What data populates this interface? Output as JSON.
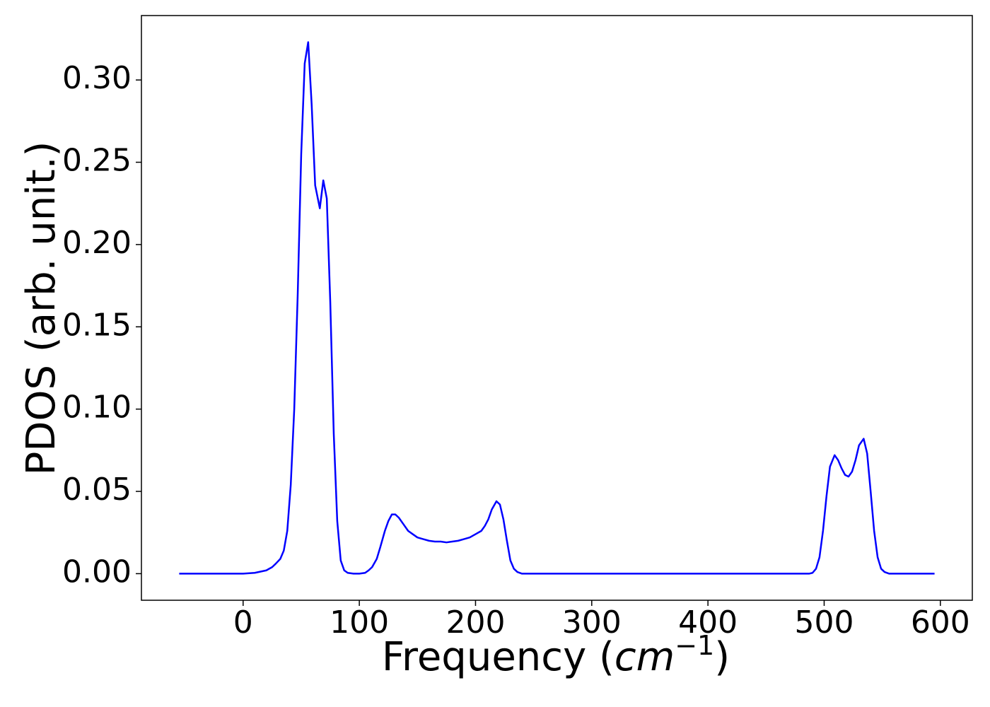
{
  "chart_data": {
    "type": "line",
    "xlabel": {
      "text": "Frequency (",
      "unit": "cm",
      "exponent": "−1",
      "close": ")"
    },
    "ylabel": "PDOS (arb. unit.)",
    "x": [
      -55,
      0,
      10,
      20,
      25,
      28,
      32,
      35,
      38,
      41,
      44,
      47,
      50,
      53,
      56,
      59,
      62,
      66,
      69,
      72,
      75,
      78,
      81,
      84,
      87,
      90,
      95,
      100,
      105,
      108,
      111,
      115,
      118,
      122,
      125,
      128,
      131,
      134,
      138,
      142,
      146,
      150,
      155,
      160,
      165,
      170,
      175,
      180,
      185,
      190,
      195,
      200,
      205,
      208,
      211,
      214,
      218,
      221,
      224,
      227,
      230,
      233,
      236,
      240,
      300,
      400,
      487,
      490,
      493,
      496,
      499,
      502,
      505,
      509,
      512,
      515,
      518,
      521,
      524,
      527,
      530,
      534,
      537,
      540,
      543,
      546,
      549,
      552,
      556,
      595
    ],
    "series": [
      {
        "name": "PDOS",
        "color": "#0000ff",
        "values": [
          0,
          0,
          0.0005,
          0.002,
          0.004,
          0.006,
          0.009,
          0.014,
          0.026,
          0.054,
          0.1,
          0.17,
          0.255,
          0.31,
          0.323,
          0.285,
          0.236,
          0.222,
          0.239,
          0.228,
          0.165,
          0.085,
          0.032,
          0.008,
          0.002,
          0.0005,
          0,
          0,
          0.0005,
          0.002,
          0.004,
          0.009,
          0.016,
          0.026,
          0.032,
          0.036,
          0.036,
          0.034,
          0.03,
          0.026,
          0.024,
          0.022,
          0.021,
          0.02,
          0.0195,
          0.0195,
          0.019,
          0.0195,
          0.02,
          0.021,
          0.022,
          0.024,
          0.026,
          0.029,
          0.033,
          0.039,
          0.044,
          0.042,
          0.033,
          0.02,
          0.008,
          0.003,
          0.001,
          0,
          0,
          0,
          0,
          0.0005,
          0.003,
          0.01,
          0.026,
          0.047,
          0.065,
          0.072,
          0.069,
          0.064,
          0.06,
          0.059,
          0.062,
          0.069,
          0.078,
          0.082,
          0.073,
          0.05,
          0.026,
          0.01,
          0.003,
          0.001,
          0,
          0
        ]
      }
    ],
    "xlim": [
      -87.5,
      627.5
    ],
    "ylim": [
      -0.01615,
      0.33915
    ],
    "xticks": [
      0,
      100,
      200,
      300,
      400,
      500,
      600
    ],
    "yticks": [
      {
        "value": 0,
        "label": "0.00"
      },
      {
        "value": 0.05,
        "label": "0.05"
      },
      {
        "value": 0.1,
        "label": "0.10"
      },
      {
        "value": 0.15,
        "label": "0.15"
      },
      {
        "value": 0.2,
        "label": "0.20"
      },
      {
        "value": 0.25,
        "label": "0.25"
      },
      {
        "value": 0.3,
        "label": "0.30"
      }
    ],
    "grid": false
  }
}
